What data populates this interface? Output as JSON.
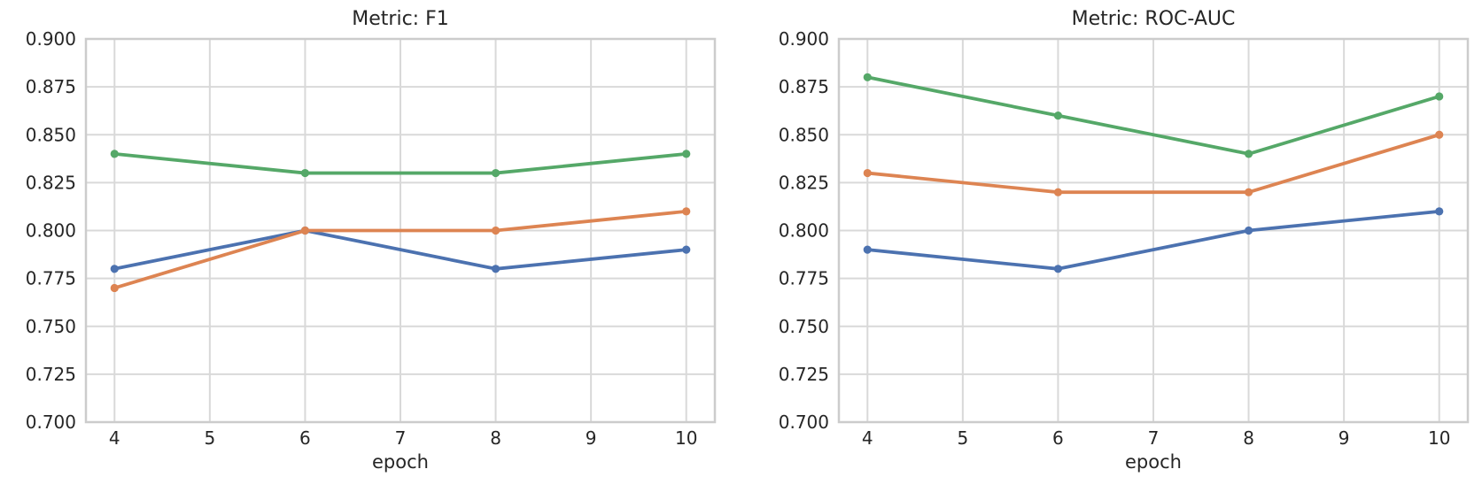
{
  "figure": {
    "background": "#ffffff",
    "text_color": "#262626",
    "grid_color": "#d9d9d9",
    "spine_color": "#cccccc"
  },
  "chart_data": [
    {
      "type": "line",
      "title": "Metric: F1",
      "xlabel": "epoch",
      "ylabel": "",
      "x": [
        4,
        6,
        8,
        10
      ],
      "x_tick_labels": [
        "4",
        "5",
        "6",
        "7",
        "8",
        "9",
        "10"
      ],
      "x_tick_values": [
        4,
        5,
        6,
        7,
        8,
        9,
        10
      ],
      "y_tick_labels": [
        "0.900",
        "0.875",
        "0.850",
        "0.825",
        "0.800",
        "0.775",
        "0.750",
        "0.725",
        "0.700"
      ],
      "y_tick_values": [
        0.9,
        0.875,
        0.85,
        0.825,
        0.8,
        0.775,
        0.75,
        0.725,
        0.7
      ],
      "xlim": [
        3.7,
        10.3
      ],
      "ylim": [
        0.7,
        0.9
      ],
      "grid": true,
      "legend_position": "none",
      "series": [
        {
          "name": "blue",
          "color": "#4c72b0",
          "values": [
            0.78,
            0.8,
            0.78,
            0.79
          ]
        },
        {
          "name": "orange",
          "color": "#dd8452",
          "values": [
            0.77,
            0.8,
            0.8,
            0.81
          ]
        },
        {
          "name": "green",
          "color": "#55a868",
          "values": [
            0.84,
            0.83,
            0.83,
            0.84
          ]
        }
      ]
    },
    {
      "type": "line",
      "title": "Metric: ROC-AUC",
      "xlabel": "epoch",
      "ylabel": "",
      "x": [
        4,
        6,
        8,
        10
      ],
      "x_tick_labels": [
        "4",
        "5",
        "6",
        "7",
        "8",
        "9",
        "10"
      ],
      "x_tick_values": [
        4,
        5,
        6,
        7,
        8,
        9,
        10
      ],
      "y_tick_labels": [
        "0.900",
        "0.875",
        "0.850",
        "0.825",
        "0.800",
        "0.775",
        "0.750",
        "0.725",
        "0.700"
      ],
      "y_tick_values": [
        0.9,
        0.875,
        0.85,
        0.825,
        0.8,
        0.775,
        0.75,
        0.725,
        0.7
      ],
      "xlim": [
        3.7,
        10.3
      ],
      "ylim": [
        0.7,
        0.9
      ],
      "grid": true,
      "legend_position": "none",
      "series": [
        {
          "name": "blue",
          "color": "#4c72b0",
          "values": [
            0.79,
            0.78,
            0.8,
            0.81
          ]
        },
        {
          "name": "orange",
          "color": "#dd8452",
          "values": [
            0.83,
            0.82,
            0.82,
            0.85
          ]
        },
        {
          "name": "green",
          "color": "#55a868",
          "values": [
            0.88,
            0.86,
            0.84,
            0.87
          ]
        }
      ]
    }
  ]
}
